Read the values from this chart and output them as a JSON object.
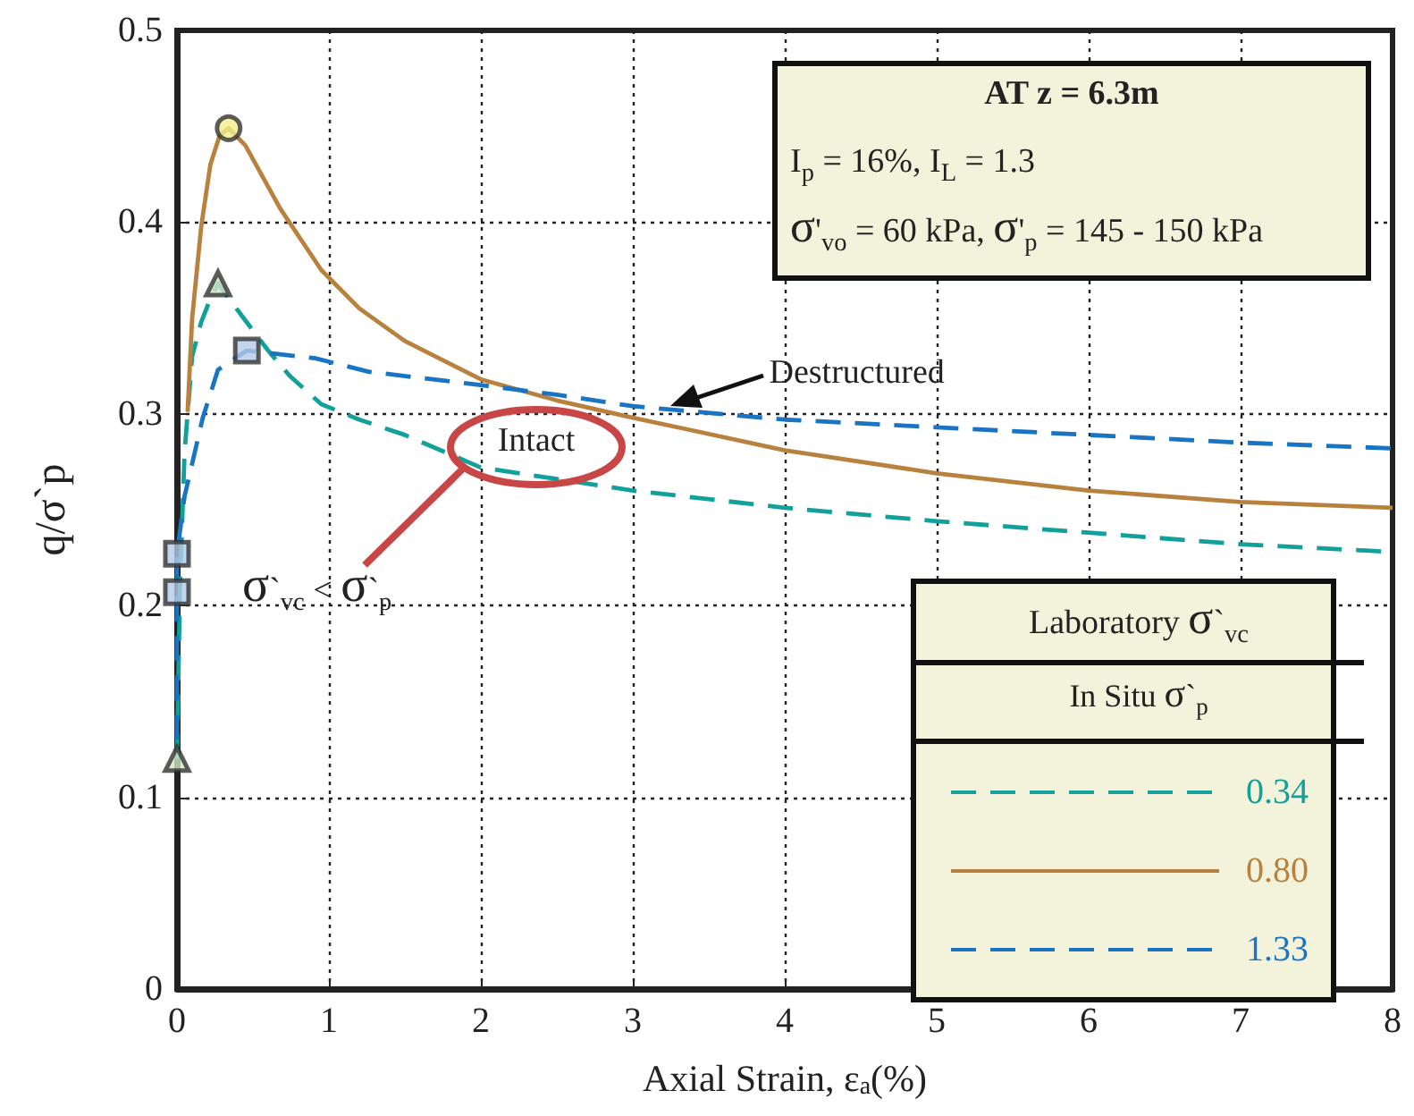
{
  "chart_data": {
    "type": "line",
    "xlabel": "Axial Strain, ε$_{a}$(%)",
    "ylabel": "q/σ`p",
    "xlim": [
      0,
      8
    ],
    "xticks": [
      0,
      1,
      2,
      3,
      4,
      5,
      6,
      7,
      8
    ],
    "ylim": [
      0,
      0.5
    ],
    "yticks": [
      0,
      0.1,
      0.2,
      0.3,
      0.4,
      0.5
    ],
    "grid": true,
    "legend": "bottom right",
    "legend_title": "Laboratory σ`$_{vc}$\nIn Situ σ`$_{p}$",
    "series": [
      {
        "name": "0.34",
        "color": "#12a09a",
        "line_style": "dashed",
        "x": [
          0,
          0.02,
          0.05,
          0.1,
          0.16,
          0.22,
          0.27,
          0.4,
          0.6,
          0.74,
          0.95,
          1.2,
          1.5,
          2,
          2.5,
          3,
          4,
          5,
          6,
          7,
          8
        ],
        "values": [
          0.12,
          0.21,
          0.28,
          0.33,
          0.348,
          0.36,
          0.368,
          0.354,
          0.333,
          0.32,
          0.305,
          0.297,
          0.289,
          0.272,
          0.266,
          0.26,
          0.251,
          0.244,
          0.238,
          0.232,
          0.228
        ]
      },
      {
        "name": "0.80",
        "color": "#b8823e",
        "line_style": "solid",
        "x": [
          0.07,
          0.1,
          0.16,
          0.22,
          0.28,
          0.34,
          0.45,
          0.68,
          0.95,
          1.2,
          1.5,
          2,
          2.5,
          3,
          4,
          5,
          6,
          7,
          8
        ],
        "values": [
          0.301,
          0.35,
          0.398,
          0.43,
          0.445,
          0.449,
          0.44,
          0.407,
          0.375,
          0.355,
          0.338,
          0.318,
          0.307,
          0.298,
          0.281,
          0.269,
          0.26,
          0.254,
          0.251
        ]
      },
      {
        "name": "1.33",
        "color": "#1a74c4",
        "line_style": "dashed",
        "x": [
          0,
          0,
          0,
          0.05,
          0.17,
          0.27,
          0.46,
          0.91,
          1.26,
          2,
          2.5,
          3,
          4,
          5,
          6,
          7,
          8
        ],
        "values": [
          0.13,
          0.207,
          0.227,
          0.257,
          0.298,
          0.323,
          0.333,
          0.329,
          0.322,
          0.315,
          0.31,
          0.304,
          0.297,
          0.293,
          0.289,
          0.285,
          0.282
        ]
      },
      {
        "type": "scatter",
        "color": "#d6e6c6",
        "marker": "triangle",
        "x": [
          0,
          0.27
        ],
        "values": [
          0.12,
          0.368
        ]
      },
      {
        "type": "scatter",
        "color": "#f4ee8a",
        "marker": "circle",
        "x": [
          0.34
        ],
        "values": [
          0.449
        ]
      },
      {
        "type": "scatter",
        "color": "#b4cbe8",
        "marker": "square",
        "x": [
          0,
          0,
          0.46
        ],
        "values": [
          0.207,
          0.227,
          0.333
        ]
      }
    ],
    "annotations": [
      "AT z = 6.3m",
      "I$_{p}$ = 16%, I$_{L}$ = 1.3",
      "σ'$_{vo}$ = 60 kPa, σ'$_{p}$ = 145 - 150 kPa",
      {
        "text": "Destructured",
        "x": 3.25,
        "y": 0.303
      },
      "Intact",
      {
        "text": "σ`$_{vc}$ < σ`$_{p}$",
        "x": 1.9,
        "y": 0.273
      }
    ]
  }
}
